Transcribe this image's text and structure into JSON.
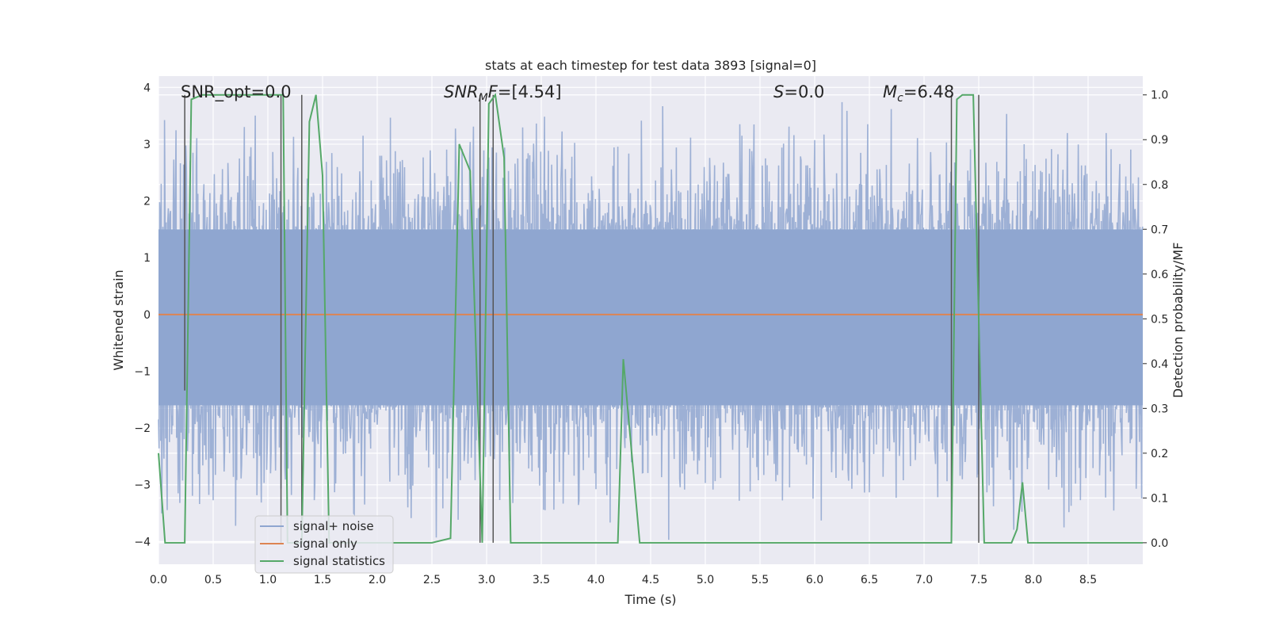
{
  "chart_data": {
    "type": "line",
    "title": "stats at each timestep for test data 3893 [signal=0]",
    "xlabel": "Time (s)",
    "ylabel": "Whitened strain",
    "y2label": "Detection probability/MF",
    "xlim": [
      0.0,
      9.0
    ],
    "ylim": [
      -4.4,
      4.2
    ],
    "y2lim": [
      -0.048,
      1.042
    ],
    "xticks": [
      0.0,
      0.5,
      1.0,
      1.5,
      2.0,
      2.5,
      3.0,
      3.5,
      4.0,
      4.5,
      5.0,
      5.5,
      6.0,
      6.5,
      7.0,
      7.5,
      8.0,
      8.5
    ],
    "xtick_labels": [
      "0.0",
      "0.5",
      "1.0",
      "1.5",
      "2.0",
      "2.5",
      "3.0",
      "3.5",
      "4.0",
      "4.5",
      "5.0",
      "5.5",
      "6.0",
      "6.5",
      "7.0",
      "7.5",
      "8.0",
      "8.5"
    ],
    "yticks": [
      4,
      3,
      2,
      1,
      0,
      -1,
      -2,
      -3,
      -4
    ],
    "ytick_labels": [
      "4",
      "3",
      "2",
      "1",
      "0",
      "−1",
      "−2",
      "−3",
      "−4"
    ],
    "y2ticks": [
      1.0,
      0.9,
      0.8,
      0.7,
      0.6,
      0.5,
      0.4,
      0.3,
      0.2,
      0.1,
      0.0
    ],
    "y2tick_labels": [
      "1.0",
      "0.9",
      "0.8",
      "0.7",
      "0.6",
      "0.5",
      "0.4",
      "0.3",
      "0.2",
      "0.1",
      "0.0"
    ],
    "legend": {
      "position": "lower-left",
      "entries": [
        {
          "label": "signal+ noise",
          "color": "#8fa6d0"
        },
        {
          "label": "signal only",
          "color": "#dd8452"
        },
        {
          "label": "signal statistics",
          "color": "#55a868"
        }
      ]
    },
    "annotations": {
      "snr_opt": {
        "name": "SNR_opt",
        "value": "0.0"
      },
      "snr_mf": {
        "name": "SNR",
        "sub": "M",
        "suffix": "F",
        "value": "[4.54]"
      },
      "s": {
        "name": "S",
        "value": "0.0"
      },
      "mc": {
        "name": "M",
        "sub": "c",
        "value": "6.48"
      }
    },
    "series": [
      {
        "name": "signal+ noise",
        "kind": "noise",
        "color": "#8fa6d0",
        "x_range": [
          0.0,
          9.0
        ],
        "core_range": [
          -1.6,
          1.5
        ],
        "peak_max": 3.85,
        "trough_min": -4.0
      },
      {
        "name": "signal only",
        "color": "#dd8452",
        "x": [
          0.0,
          9.0
        ],
        "y": [
          0.0,
          0.0
        ]
      },
      {
        "name": "signal statistics",
        "color": "#55a868",
        "axis": "right",
        "x": [
          0.0,
          0.06,
          0.24,
          0.3,
          0.4,
          1.14,
          1.18,
          1.31,
          1.38,
          1.44,
          1.5,
          1.56,
          2.5,
          2.67,
          2.75,
          2.85,
          2.96,
          3.02,
          3.08,
          3.16,
          3.22,
          3.32,
          4.2,
          4.25,
          4.4,
          7.25,
          7.3,
          7.35,
          7.45,
          7.55,
          7.6,
          7.8,
          7.85,
          7.9,
          7.95,
          8.0,
          8.5,
          9.0
        ],
        "y": [
          0.2,
          0.0,
          0.0,
          0.99,
          1.0,
          1.0,
          0.0,
          0.0,
          0.94,
          1.0,
          0.82,
          0.0,
          0.0,
          0.01,
          0.89,
          0.83,
          0.0,
          0.98,
          1.0,
          0.86,
          0.0,
          0.0,
          0.0,
          0.41,
          0.0,
          0.0,
          0.99,
          1.0,
          1.0,
          0.0,
          0.0,
          0.0,
          0.03,
          0.135,
          0.0,
          0.0,
          0.0,
          0.0
        ]
      }
    ],
    "vertical_markers": [
      {
        "x": 0.24,
        "y_top": 1.0,
        "y_bottom": 0.34
      },
      {
        "x": 1.12,
        "y_top": 1.0,
        "y_bottom": 0.0
      },
      {
        "x": 1.31,
        "y_top": 1.0,
        "y_bottom": 0.0
      },
      {
        "x": 2.94,
        "y_top": 1.0,
        "y_bottom": 0.0
      },
      {
        "x": 3.06,
        "y_top": 1.0,
        "y_bottom": 0.0
      },
      {
        "x": 7.25,
        "y_top": 1.0,
        "y_bottom": 0.0
      },
      {
        "x": 7.5,
        "y_top": 1.0,
        "y_bottom": 0.0
      }
    ]
  }
}
